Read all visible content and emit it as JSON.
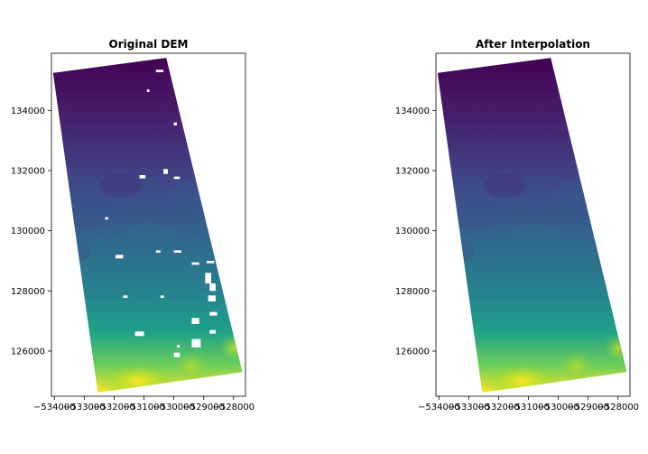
{
  "chart_data": [
    {
      "type": "heatmap",
      "title": "Original DEM",
      "xlim": [
        -534100,
        -527600
      ],
      "ylim": [
        124500,
        135900
      ],
      "xticks": [
        -534000,
        -533000,
        -532000,
        -531000,
        -530000,
        -529000,
        -528000
      ],
      "xtick_labels": [
        "−534000",
        "−533000",
        "−532000",
        "−531000",
        "−530000",
        "−529000",
        "−528000"
      ],
      "yticks": [
        126000,
        128000,
        130000,
        132000,
        134000
      ],
      "ytick_labels": [
        "126000",
        "128000",
        "130000",
        "132000",
        "134000"
      ],
      "colormap": "viridis",
      "footprint": [
        [
          -534050,
          135250
        ],
        [
          -530250,
          135750
        ],
        [
          -527700,
          125300
        ],
        [
          -532550,
          124620
        ]
      ],
      "has_gaps": true,
      "gaps": [
        [
          -530600,
          135350,
          250,
          80
        ],
        [
          -530900,
          134700,
          80,
          90
        ],
        [
          -530000,
          133600,
          100,
          100
        ],
        [
          -531150,
          131850,
          200,
          110
        ],
        [
          -530350,
          132050,
          150,
          160
        ],
        [
          -530000,
          131800,
          200,
          80
        ],
        [
          -532300,
          130450,
          100,
          80
        ],
        [
          -530600,
          129350,
          150,
          80
        ],
        [
          -530000,
          129350,
          250,
          80
        ],
        [
          -531950,
          129200,
          250,
          120
        ],
        [
          -529400,
          128950,
          250,
          80
        ],
        [
          -528900,
          129000,
          250,
          80
        ],
        [
          -528950,
          128600,
          200,
          350
        ],
        [
          -528800,
          128250,
          200,
          250
        ],
        [
          -528850,
          127850,
          250,
          200
        ],
        [
          -530450,
          127850,
          120,
          80
        ],
        [
          -531700,
          127850,
          150,
          80
        ],
        [
          -528800,
          127300,
          250,
          120
        ],
        [
          -529400,
          127100,
          250,
          200
        ],
        [
          -528800,
          126700,
          200,
          120
        ],
        [
          -531300,
          126650,
          300,
          150
        ],
        [
          -529400,
          126400,
          300,
          280
        ],
        [
          -529900,
          126200,
          100,
          80
        ],
        [
          -530000,
          125950,
          200,
          150
        ]
      ]
    },
    {
      "type": "heatmap",
      "title": "After Interpolation",
      "xlim": [
        -534100,
        -527600
      ],
      "ylim": [
        124500,
        135900
      ],
      "xticks": [
        -534000,
        -533000,
        -532000,
        -531000,
        -530000,
        -529000,
        -528000
      ],
      "xtick_labels": [
        "−534000",
        "−533000",
        "−532000",
        "−531000",
        "−530000",
        "−529000",
        "−528000"
      ],
      "yticks": [
        126000,
        128000,
        130000,
        132000,
        134000
      ],
      "ytick_labels": [
        "126000",
        "128000",
        "130000",
        "132000",
        "134000"
      ],
      "colormap": "viridis",
      "footprint": [
        [
          -534050,
          135250
        ],
        [
          -530250,
          135750
        ],
        [
          -527700,
          125300
        ],
        [
          -532550,
          124620
        ]
      ],
      "has_gaps": false,
      "gaps": []
    }
  ]
}
